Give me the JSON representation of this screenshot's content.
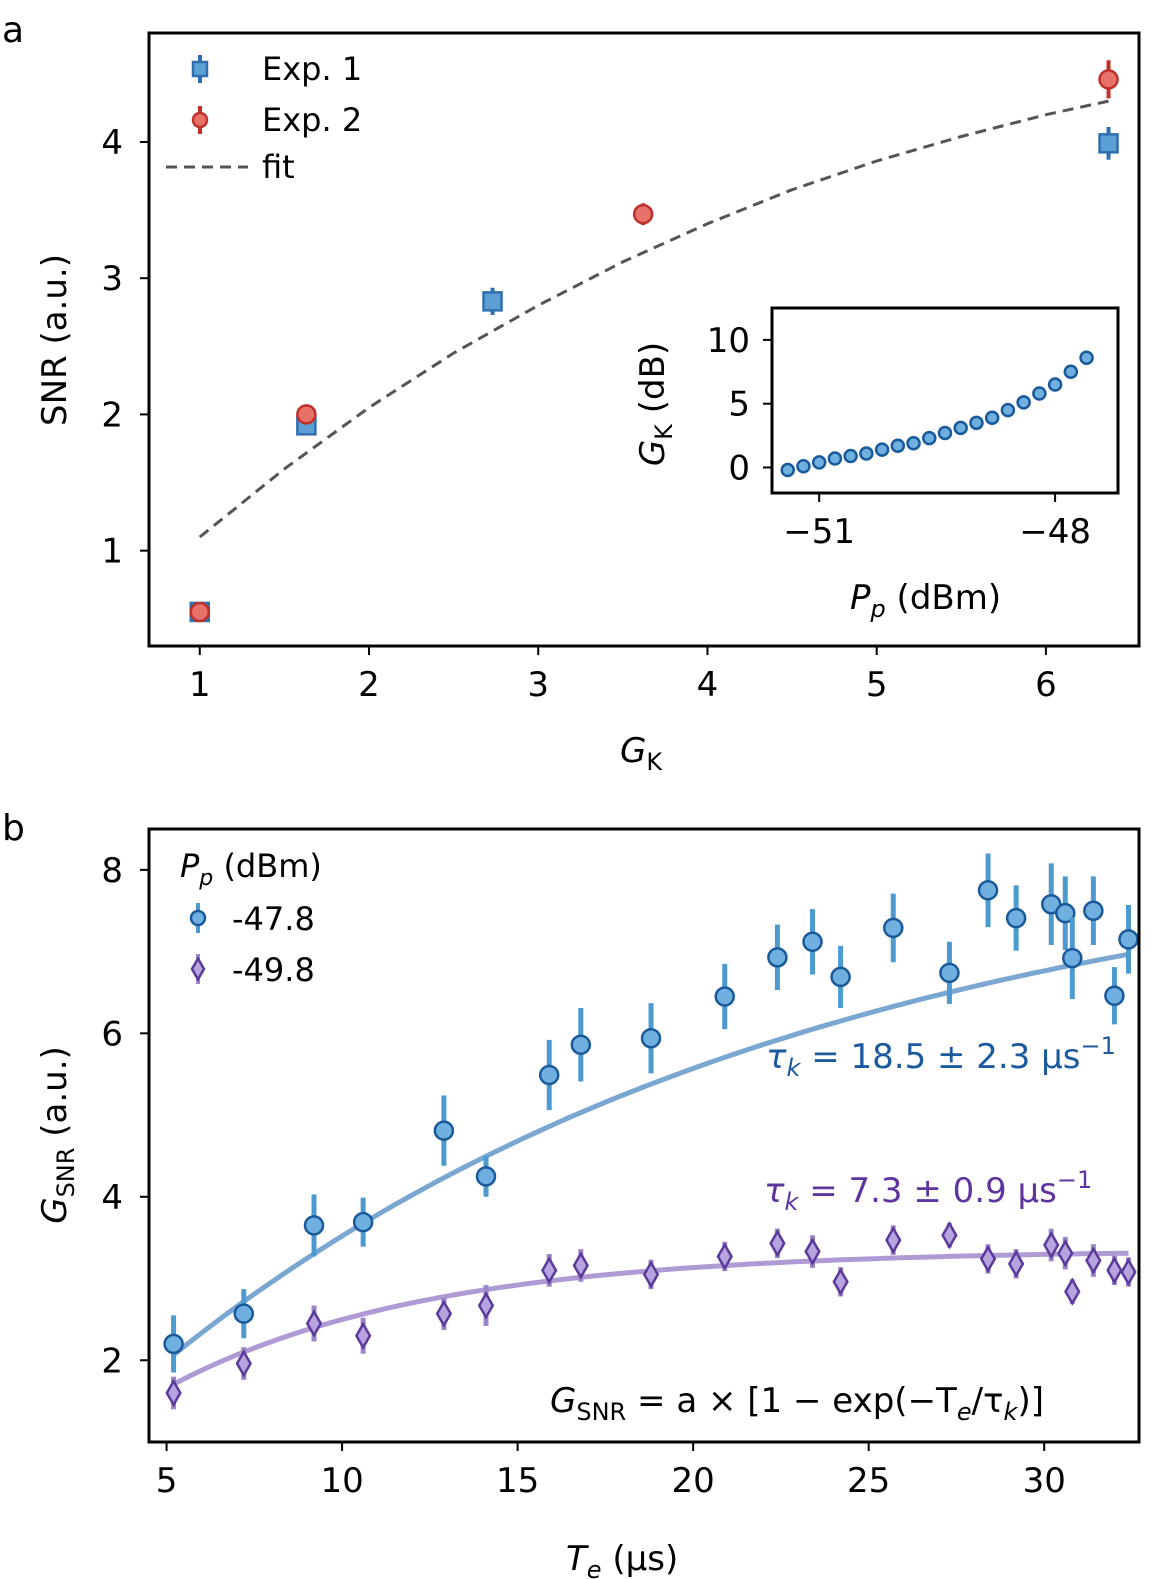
{
  "colors": {
    "exp1": "#5b9fd4",
    "exp1_edge": "#2f6fae",
    "exp2": "#e8726a",
    "exp2_edge": "#c0302a",
    "fit": "#555555",
    "blue_point": "#6fb0e0",
    "blue_edge": "#1a5a9a",
    "blue_err": "#4d9ad0",
    "blue_curve": "#7aa6d2",
    "purple_point": "#b7a3de",
    "purple_edge": "#5a3a9a",
    "purple_err": "#9b86c8",
    "purple_curve": "#b09ad6",
    "blue_text": "#1c5aa0",
    "purple_text": "#5e35a0"
  },
  "chart_data": [
    {
      "panel": "a",
      "type": "scatter",
      "xlabel": "G",
      "xlabel_sub": "K",
      "ylabel": "SNR (a.u.)",
      "xlim": [
        0.7,
        6.55
      ],
      "ylim": [
        0.3,
        4.8
      ],
      "xticks": [
        "1",
        "2",
        "3",
        "4",
        "5",
        "6"
      ],
      "yticks": [
        "1",
        "2",
        "3",
        "4"
      ],
      "legend": [
        "Exp. 1",
        "Exp. 2",
        "fit"
      ],
      "series": [
        {
          "name": "Exp. 1",
          "marker": "square",
          "x": [
            1.0,
            1.63,
            2.73,
            6.37
          ],
          "y": [
            0.55,
            1.92,
            2.83,
            3.99
          ],
          "err": [
            0.04,
            0.06,
            0.1,
            0.12
          ]
        },
        {
          "name": "Exp. 2",
          "marker": "circle",
          "x": [
            1.0,
            1.63,
            3.62,
            6.37
          ],
          "y": [
            0.55,
            2.0,
            3.47,
            4.46
          ],
          "err": [
            0.04,
            0.05,
            0.08,
            0.14
          ]
        }
      ],
      "fit": {
        "name": "fit",
        "x": [
          1.0,
          1.5,
          2.0,
          2.5,
          3.0,
          3.5,
          4.0,
          4.5,
          5.0,
          5.5,
          6.0,
          6.37
        ],
        "y": [
          1.1,
          1.6,
          2.05,
          2.45,
          2.8,
          3.12,
          3.4,
          3.65,
          3.86,
          4.04,
          4.2,
          4.3
        ]
      },
      "inset": {
        "xlabel": "P",
        "xlabel_sub": "p",
        "xlabel_unit": " (dBm)",
        "ylabel": "G",
        "ylabel_sub": "K",
        "ylabel_unit": " (dB)",
        "xlim": [
          -51.6,
          -47.2
        ],
        "ylim": [
          -2.0,
          12.5
        ],
        "xticks": [
          "−51",
          "−48"
        ],
        "yticks": [
          "0",
          "5",
          "10"
        ],
        "x": [
          -51.4,
          -51.2,
          -51.0,
          -50.8,
          -50.6,
          -50.4,
          -50.2,
          -50.0,
          -49.8,
          -49.6,
          -49.4,
          -49.2,
          -49.0,
          -48.8,
          -48.6,
          -48.4,
          -48.2,
          -48.0,
          -47.8,
          -47.6
        ],
        "y": [
          -0.2,
          0.1,
          0.4,
          0.7,
          0.9,
          1.1,
          1.4,
          1.7,
          1.9,
          2.3,
          2.7,
          3.1,
          3.5,
          3.9,
          4.5,
          5.1,
          5.8,
          6.5,
          7.5,
          8.6
        ]
      }
    },
    {
      "panel": "b",
      "type": "scatter",
      "xlabel": "T",
      "xlabel_sub": "e",
      "xlabel_unit": "   (μs)",
      "ylabel": "G",
      "ylabel_sub": "SNR",
      "ylabel_unit": " (a.u.)",
      "xlim": [
        4.5,
        32.7
      ],
      "ylim": [
        1.0,
        8.5
      ],
      "xticks": [
        "5",
        "10",
        "15",
        "20",
        "25",
        "30"
      ],
      "yticks": [
        "2",
        "4",
        "6",
        "8"
      ],
      "legend_title": "P",
      "legend_title_sub": "p",
      "legend_title_unit": " (dBm)",
      "series": [
        {
          "name": "-47.8",
          "marker": "circle",
          "x": [
            5.2,
            7.2,
            9.2,
            10.6,
            12.9,
            14.1,
            15.9,
            16.8,
            18.8,
            20.9,
            22.4,
            23.4,
            24.2,
            25.7,
            27.3,
            28.4,
            29.2,
            30.2,
            30.6,
            30.8,
            31.4,
            32.0,
            32.4
          ],
          "y": [
            2.2,
            2.57,
            3.65,
            3.69,
            4.81,
            4.25,
            5.49,
            5.86,
            5.94,
            6.45,
            6.93,
            7.12,
            6.69,
            7.29,
            6.74,
            7.75,
            7.41,
            7.58,
            7.47,
            6.92,
            7.5,
            6.46,
            7.15
          ],
          "err": [
            0.35,
            0.3,
            0.38,
            0.3,
            0.43,
            0.25,
            0.43,
            0.45,
            0.43,
            0.4,
            0.4,
            0.4,
            0.38,
            0.42,
            0.38,
            0.45,
            0.4,
            0.5,
            0.45,
            0.5,
            0.42,
            0.35,
            0.42
          ]
        },
        {
          "name": "-49.8",
          "marker": "diamond",
          "x": [
            5.2,
            7.2,
            9.2,
            10.6,
            12.9,
            14.1,
            15.9,
            16.8,
            18.8,
            20.9,
            22.4,
            23.4,
            24.2,
            25.7,
            27.3,
            28.4,
            29.2,
            30.2,
            30.6,
            30.8,
            31.4,
            32.0,
            32.4
          ],
          "y": [
            1.6,
            1.96,
            2.45,
            2.3,
            2.57,
            2.67,
            3.1,
            3.16,
            3.05,
            3.27,
            3.43,
            3.33,
            2.96,
            3.47,
            3.53,
            3.24,
            3.18,
            3.41,
            3.31,
            2.84,
            3.22,
            3.1,
            3.08
          ],
          "err": [
            0.2,
            0.2,
            0.22,
            0.22,
            0.2,
            0.25,
            0.2,
            0.2,
            0.18,
            0.18,
            0.18,
            0.2,
            0.18,
            0.18,
            0.15,
            0.18,
            0.18,
            0.2,
            0.2,
            0.15,
            0.2,
            0.18,
            0.18
          ]
        }
      ],
      "fits": [
        {
          "name": "fit -47.8",
          "a": 8.43,
          "tau": 18.5
        },
        {
          "name": "fit -49.8",
          "a": 3.35,
          "tau": 7.3
        }
      ],
      "annotations": {
        "tau_blue": "τ",
        "tau_blue_sub": "k",
        "tau_blue_rest": " = 18.5 ± 2.3 μs",
        "tau_blue_sup": "−1",
        "tau_purple": "τ",
        "tau_purple_sub": "k",
        "tau_purple_rest": " = 7.3 ± 0.9 μs",
        "tau_purple_sup": "−1",
        "formula_lhs": "G",
        "formula_lhs_sub": "SNR",
        "formula_rhs": " = a × [1 − exp(−T",
        "formula_e": "e",
        "formula_slash": "/τ",
        "formula_k": "k",
        "formula_end": ")]"
      }
    }
  ],
  "panel_labels": {
    "a": "a",
    "b": "b"
  }
}
